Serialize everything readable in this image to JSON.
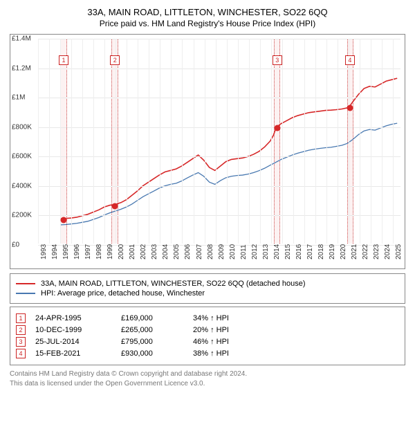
{
  "title": "33A, MAIN ROAD, LITTLETON, WINCHESTER, SO22 6QQ",
  "subtitle": "Price paid vs. HM Land Registry's House Price Index (HPI)",
  "chart": {
    "type": "line",
    "background_color": "#ffffff",
    "grid_color": "#e8e8e8",
    "axis_font_size": 10,
    "x_years": [
      1993,
      1994,
      1995,
      1996,
      1997,
      1998,
      1999,
      2000,
      2001,
      2002,
      2003,
      2004,
      2005,
      2006,
      2007,
      2008,
      2009,
      2010,
      2011,
      2012,
      2013,
      2014,
      2015,
      2016,
      2017,
      2018,
      2019,
      2020,
      2021,
      2022,
      2023,
      2024,
      2025
    ],
    "xlim": [
      1993,
      2025.8
    ],
    "y_ticks": [
      0,
      200000,
      400000,
      600000,
      800000,
      1000000,
      1200000,
      1400000
    ],
    "y_tick_labels": [
      "£0",
      "£200K",
      "£400K",
      "£600K",
      "£800K",
      "£1M",
      "£1.2M",
      "£1.4M"
    ],
    "ylim": [
      0,
      1400000
    ],
    "series": [
      {
        "name": "33A, MAIN ROAD, LITTLETON, WINCHESTER, SO22 6QQ (detached house)",
        "color": "#d62728",
        "line_width": 1.6,
        "data": [
          [
            1995.0,
            170000
          ],
          [
            1995.5,
            172000
          ],
          [
            1996.0,
            175000
          ],
          [
            1996.5,
            180000
          ],
          [
            1997.0,
            190000
          ],
          [
            1997.5,
            200000
          ],
          [
            1998.0,
            215000
          ],
          [
            1998.5,
            230000
          ],
          [
            1999.0,
            250000
          ],
          [
            1999.5,
            262000
          ],
          [
            2000.0,
            268000
          ],
          [
            2000.5,
            280000
          ],
          [
            2001.0,
            300000
          ],
          [
            2001.5,
            330000
          ],
          [
            2002.0,
            360000
          ],
          [
            2002.5,
            395000
          ],
          [
            2003.0,
            420000
          ],
          [
            2003.5,
            445000
          ],
          [
            2004.0,
            470000
          ],
          [
            2004.5,
            490000
          ],
          [
            2005.0,
            500000
          ],
          [
            2005.5,
            510000
          ],
          [
            2006.0,
            530000
          ],
          [
            2006.5,
            555000
          ],
          [
            2007.0,
            580000
          ],
          [
            2007.5,
            605000
          ],
          [
            2008.0,
            570000
          ],
          [
            2008.5,
            520000
          ],
          [
            2009.0,
            500000
          ],
          [
            2009.5,
            530000
          ],
          [
            2010.0,
            560000
          ],
          [
            2010.5,
            575000
          ],
          [
            2011.0,
            580000
          ],
          [
            2011.5,
            585000
          ],
          [
            2012.0,
            595000
          ],
          [
            2012.5,
            610000
          ],
          [
            2013.0,
            630000
          ],
          [
            2013.5,
            660000
          ],
          [
            2014.0,
            700000
          ],
          [
            2014.3,
            740000
          ],
          [
            2014.56,
            795000
          ],
          [
            2015.0,
            820000
          ],
          [
            2015.5,
            840000
          ],
          [
            2016.0,
            860000
          ],
          [
            2016.5,
            875000
          ],
          [
            2017.0,
            885000
          ],
          [
            2017.5,
            895000
          ],
          [
            2018.0,
            900000
          ],
          [
            2018.5,
            905000
          ],
          [
            2019.0,
            910000
          ],
          [
            2019.5,
            912000
          ],
          [
            2020.0,
            915000
          ],
          [
            2020.5,
            920000
          ],
          [
            2021.0,
            928000
          ],
          [
            2021.12,
            930000
          ],
          [
            2021.5,
            970000
          ],
          [
            2022.0,
            1020000
          ],
          [
            2022.5,
            1060000
          ],
          [
            2023.0,
            1075000
          ],
          [
            2023.5,
            1070000
          ],
          [
            2024.0,
            1090000
          ],
          [
            2024.5,
            1110000
          ],
          [
            2025.0,
            1120000
          ],
          [
            2025.5,
            1130000
          ]
        ]
      },
      {
        "name": "HPI: Average price, detached house, Winchester",
        "color": "#4878b0",
        "line_width": 1.3,
        "data": [
          [
            1995.0,
            128000
          ],
          [
            1995.5,
            130000
          ],
          [
            1996.0,
            134000
          ],
          [
            1996.5,
            138000
          ],
          [
            1997.0,
            145000
          ],
          [
            1997.5,
            152000
          ],
          [
            1998.0,
            165000
          ],
          [
            1998.5,
            178000
          ],
          [
            1999.0,
            195000
          ],
          [
            1999.5,
            210000
          ],
          [
            2000.0,
            222000
          ],
          [
            2000.5,
            235000
          ],
          [
            2001.0,
            250000
          ],
          [
            2001.5,
            270000
          ],
          [
            2002.0,
            295000
          ],
          [
            2002.5,
            320000
          ],
          [
            2003.0,
            340000
          ],
          [
            2003.5,
            360000
          ],
          [
            2004.0,
            380000
          ],
          [
            2004.5,
            395000
          ],
          [
            2005.0,
            405000
          ],
          [
            2005.5,
            412000
          ],
          [
            2006.0,
            428000
          ],
          [
            2006.5,
            448000
          ],
          [
            2007.0,
            468000
          ],
          [
            2007.5,
            485000
          ],
          [
            2008.0,
            460000
          ],
          [
            2008.5,
            420000
          ],
          [
            2009.0,
            405000
          ],
          [
            2009.5,
            430000
          ],
          [
            2010.0,
            450000
          ],
          [
            2010.5,
            460000
          ],
          [
            2011.0,
            465000
          ],
          [
            2011.5,
            468000
          ],
          [
            2012.0,
            475000
          ],
          [
            2012.5,
            485000
          ],
          [
            2013.0,
            498000
          ],
          [
            2013.5,
            515000
          ],
          [
            2014.0,
            535000
          ],
          [
            2014.5,
            555000
          ],
          [
            2015.0,
            575000
          ],
          [
            2015.5,
            590000
          ],
          [
            2016.0,
            605000
          ],
          [
            2016.5,
            618000
          ],
          [
            2017.0,
            628000
          ],
          [
            2017.5,
            638000
          ],
          [
            2018.0,
            645000
          ],
          [
            2018.5,
            650000
          ],
          [
            2019.0,
            655000
          ],
          [
            2019.5,
            658000
          ],
          [
            2020.0,
            665000
          ],
          [
            2020.5,
            672000
          ],
          [
            2021.0,
            685000
          ],
          [
            2021.5,
            712000
          ],
          [
            2022.0,
            745000
          ],
          [
            2022.5,
            770000
          ],
          [
            2023.0,
            780000
          ],
          [
            2023.5,
            775000
          ],
          [
            2024.0,
            790000
          ],
          [
            2024.5,
            805000
          ],
          [
            2025.0,
            815000
          ],
          [
            2025.5,
            822000
          ]
        ]
      }
    ],
    "sale_markers": [
      {
        "n": 1,
        "x": 1995.31,
        "y": 169000,
        "band_x0": 1995.0,
        "band_x1": 1995.6,
        "dot_color": "#d62728"
      },
      {
        "n": 2,
        "x": 1999.94,
        "y": 265000,
        "band_x0": 1999.6,
        "band_x1": 2000.25,
        "dot_color": "#d62728"
      },
      {
        "n": 3,
        "x": 2014.56,
        "y": 795000,
        "band_x0": 2014.25,
        "band_x1": 2014.85,
        "dot_color": "#d62728"
      },
      {
        "n": 4,
        "x": 2021.12,
        "y": 930000,
        "band_x0": 2020.85,
        "band_x1": 2021.45,
        "dot_color": "#d62728"
      }
    ]
  },
  "legend": {
    "series1_label": "33A, MAIN ROAD, LITTLETON, WINCHESTER, SO22 6QQ (detached house)",
    "series2_label": "HPI: Average price, detached house, Winchester",
    "series1_color": "#d62728",
    "series2_color": "#4878b0"
  },
  "sales": [
    {
      "n": "1",
      "date": "24-APR-1995",
      "price": "£169,000",
      "pct": "34% ↑ HPI"
    },
    {
      "n": "2",
      "date": "10-DEC-1999",
      "price": "£265,000",
      "pct": "20% ↑ HPI"
    },
    {
      "n": "3",
      "date": "25-JUL-2014",
      "price": "£795,000",
      "pct": "46% ↑ HPI"
    },
    {
      "n": "4",
      "date": "15-FEB-2021",
      "price": "£930,000",
      "pct": "38% ↑ HPI"
    }
  ],
  "footer": {
    "line1": "Contains HM Land Registry data © Crown copyright and database right 2024.",
    "line2": "This data is licensed under the Open Government Licence v3.0."
  }
}
